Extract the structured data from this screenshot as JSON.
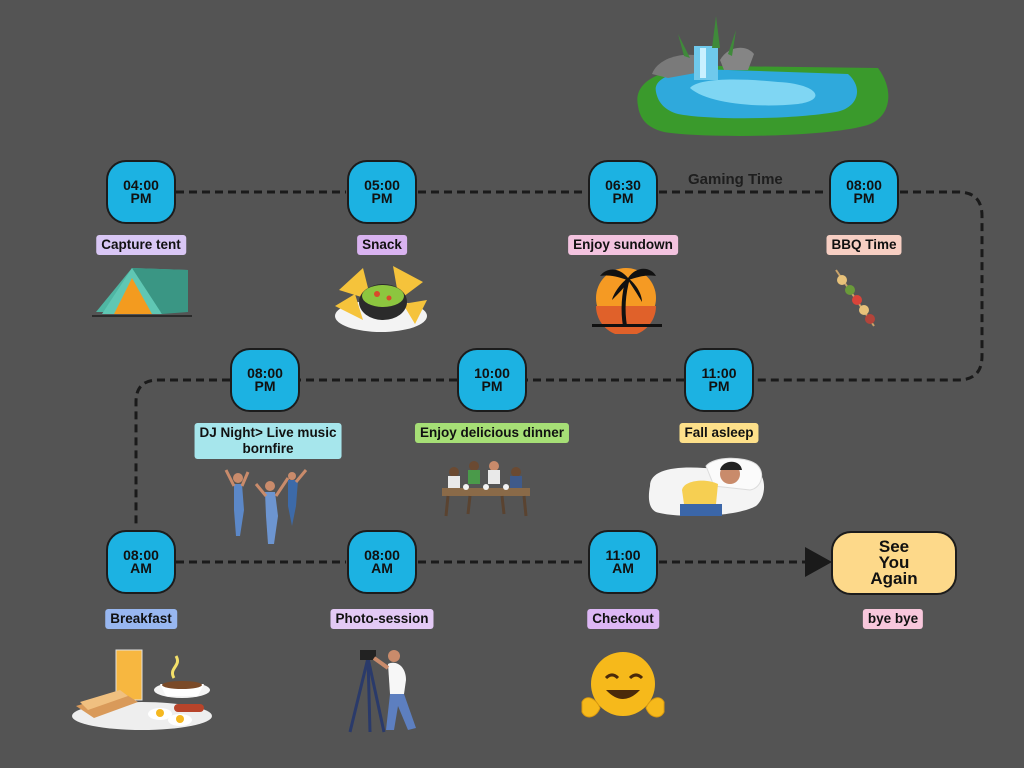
{
  "flow_caption": "Gaming Time",
  "stops": [
    {
      "id": "s1",
      "time": [
        "04:00",
        "PM"
      ],
      "label": [
        "Capture tent"
      ],
      "label_color": "#d9c7f5",
      "icon": "tent-icon"
    },
    {
      "id": "s2",
      "time": [
        "05:00",
        "PM"
      ],
      "label": [
        "Snack"
      ],
      "label_color": "#d9b3f0",
      "icon": "nachos-icon"
    },
    {
      "id": "s3",
      "time": [
        "06:30",
        "PM"
      ],
      "label": [
        "Enjoy sundown"
      ],
      "label_color": "#f3c3df",
      "icon": "sunset-palm-icon"
    },
    {
      "id": "s4",
      "time": [
        "08:00",
        "PM"
      ],
      "label": [
        "BBQ Time"
      ],
      "label_color": "#f7cfc3",
      "icon": "bbq-skewer-icon"
    },
    {
      "id": "s5",
      "time": [
        "08:00",
        "PM"
      ],
      "label": [
        "DJ Night> Live music",
        "bornfire"
      ],
      "label_color": "#a6e6ec",
      "icon": "dancers-icon"
    },
    {
      "id": "s6",
      "time": [
        "10:00",
        "PM"
      ],
      "label": [
        "Enjoy delicious dinner"
      ],
      "label_color": "#a6df76",
      "icon": "dinner-table-icon"
    },
    {
      "id": "s7",
      "time": [
        "11:00",
        "PM"
      ],
      "label": [
        "Fall asleep"
      ],
      "label_color": "#fde08a",
      "icon": "sleeping-person-icon"
    },
    {
      "id": "s8",
      "time": [
        "08:00",
        "AM"
      ],
      "label": [
        "Breakfast"
      ],
      "label_color": "#98b7f0",
      "icon": "breakfast-icon"
    },
    {
      "id": "s9",
      "time": [
        "08:00",
        "AM"
      ],
      "label": [
        "Photo-session"
      ],
      "label_color": "#e3c9f5",
      "icon": "photographer-icon"
    },
    {
      "id": "s10",
      "time": [
        "11:00",
        "AM"
      ],
      "label": [
        "Checkout"
      ],
      "label_color": "#ddb7f5",
      "icon": "smiley-icon"
    }
  ],
  "end": {
    "lines": [
      "See",
      "You",
      "Again"
    ],
    "label": "bye bye",
    "label_color": "#f8c7dc"
  },
  "decorations": {
    "top": "pond-waterfall-icon"
  },
  "colors": {
    "background": "#545454",
    "pill": "#1cb2e2",
    "connector": "#1a1a1a",
    "end_box": "#fdd98a"
  }
}
